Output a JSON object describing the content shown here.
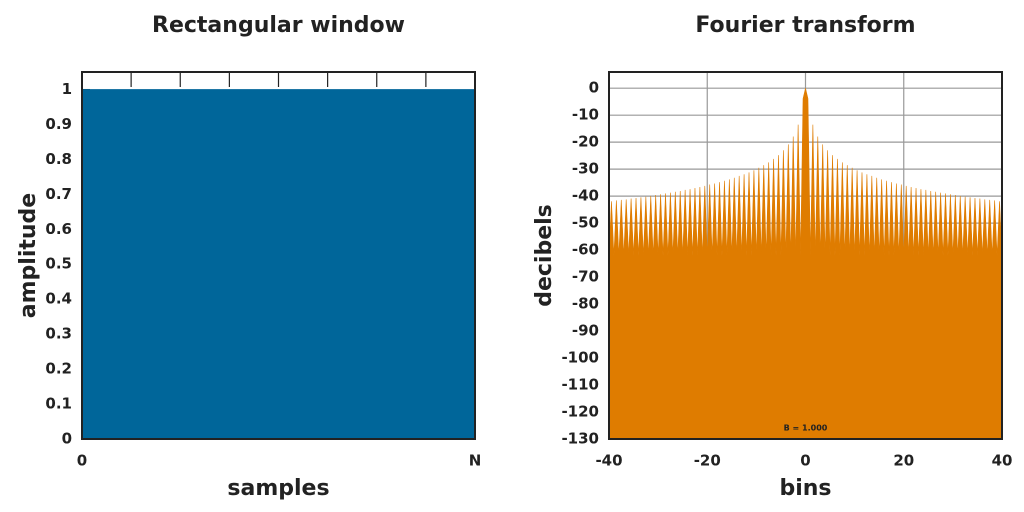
{
  "chart_data": [
    {
      "type": "area",
      "title": "Rectangular window",
      "x_label": "samples",
      "y_label": "amplitude",
      "x": [
        0,
        8
      ],
      "values": [
        1,
        1
      ],
      "color": "#00669a",
      "xlim": [
        0,
        8
      ],
      "ylim": [
        0,
        1.05
      ],
      "xticks": [
        0,
        {
          "value": 8,
          "label": "N"
        }
      ],
      "minor_xticks": [
        1,
        2,
        3,
        4,
        5,
        6,
        7
      ],
      "yticks": [
        0,
        0.1,
        0.2,
        0.3,
        0.4,
        0.5,
        0.6,
        0.7,
        0.8,
        0.9,
        1
      ],
      "grid": false
    },
    {
      "type": "area",
      "title": "Fourier transform",
      "x_label": "bins",
      "y_label": "decibels",
      "annotation": "B = 1.000",
      "x": [
        -40,
        -39.5,
        -39,
        -38.5,
        -38,
        -37.5,
        -37,
        -36.5,
        -36,
        -35.5,
        -35,
        -34.5,
        -34,
        -33.5,
        -33,
        -32.5,
        -32,
        -31.5,
        -31,
        -30.5,
        -30,
        -29.5,
        -29,
        -28.5,
        -28,
        -27.5,
        -27,
        -26.5,
        -26,
        -25.5,
        -25,
        -24.5,
        -24,
        -23.5,
        -23,
        -22.5,
        -22,
        -21.5,
        -21,
        -20.5,
        -20,
        -19.5,
        -19,
        -18.5,
        -18,
        -17.5,
        -17,
        -16.5,
        -16,
        -15.5,
        -15,
        -14.5,
        -14,
        -13.5,
        -13,
        -12.5,
        -12,
        -11.5,
        -11,
        -10.5,
        -10,
        -9.5,
        -9,
        -8.5,
        -8,
        -7.5,
        -7,
        -6.5,
        -6,
        -5.5,
        -5,
        -4.5,
        -4,
        -3.5,
        -3,
        -2.5,
        -2,
        -1.5,
        -1,
        -0.5,
        0,
        0.5,
        1,
        1.5,
        2,
        2.5,
        3,
        3.5,
        4,
        4.5,
        5,
        5.5,
        6,
        6.5,
        7,
        7.5,
        8,
        8.5,
        9,
        9.5,
        10,
        10.5,
        11,
        11.5,
        12,
        12.5,
        13,
        13.5,
        14,
        14.5,
        15,
        15.5,
        16,
        16.5,
        17,
        17.5,
        18,
        18.5,
        19,
        19.5,
        20,
        20.5,
        21,
        21.5,
        22,
        22.5,
        23,
        23.5,
        24,
        24.5,
        25,
        25.5,
        26,
        26.5,
        27,
        27.5,
        28,
        28.5,
        29,
        29.5,
        30,
        30.5,
        31,
        31.5,
        32,
        32.5,
        33,
        33.5,
        34,
        34.5,
        35,
        35.5,
        36,
        36.5,
        37,
        37.5,
        38,
        38.5,
        39,
        39.5,
        40
      ],
      "values": [
        -62,
        -41.9,
        -62,
        -41.6,
        -62,
        -41.4,
        -62,
        -41.2,
        -62,
        -40.9,
        -62,
        -40.7,
        -62,
        -40.4,
        -62,
        -40.2,
        -62,
        -39.9,
        -62,
        -39.6,
        -62,
        -39.3,
        -62,
        -39.0,
        -62,
        -38.7,
        -62,
        -38.4,
        -62,
        -38.1,
        -62,
        -37.7,
        -62,
        -37.4,
        -62,
        -37.0,
        -62,
        -36.6,
        -62,
        -36.2,
        -62,
        -35.7,
        -62,
        -35.3,
        -62,
        -34.8,
        -62,
        -34.3,
        -62,
        -33.8,
        -62,
        -33.2,
        -62,
        -32.5,
        -62,
        -31.9,
        -62,
        -31.2,
        -62,
        -30.4,
        -62,
        -29.5,
        -62,
        -28.5,
        -62,
        -27.5,
        -62,
        -26.2,
        -62,
        -24.8,
        -62,
        -23.0,
        -62,
        -20.8,
        -62,
        -17.9,
        -62,
        -13.5,
        -62,
        -3.9,
        0,
        -3.9,
        -62,
        -13.5,
        -62,
        -17.9,
        -62,
        -20.8,
        -62,
        -23.0,
        -62,
        -24.8,
        -62,
        -26.2,
        -62,
        -27.5,
        -62,
        -28.5,
        -62,
        -29.5,
        -62,
        -30.4,
        -62,
        -31.2,
        -62,
        -31.9,
        -62,
        -32.5,
        -62,
        -33.2,
        -62,
        -33.8,
        -62,
        -34.3,
        -62,
        -34.8,
        -62,
        -35.3,
        -62,
        -35.7,
        -62,
        -36.2,
        -62,
        -36.6,
        -62,
        -37.0,
        -62,
        -37.4,
        -62,
        -37.7,
        -62,
        -38.1,
        -62,
        -38.4,
        -62,
        -38.7,
        -62,
        -39.0,
        -62,
        -39.3,
        -62,
        -39.6,
        -62,
        -39.9,
        -62,
        -40.2,
        -62,
        -40.4,
        -62,
        -40.7,
        -62,
        -40.9,
        -62,
        -41.2,
        -62,
        -41.4,
        -62,
        -41.6,
        -62,
        -41.9,
        -62
      ],
      "color": "#df7c00",
      "xlim": [
        -40,
        40
      ],
      "ylim": [
        -130,
        6
      ],
      "xticks": [
        -40,
        -20,
        0,
        20,
        40
      ],
      "yticks": [
        -130,
        -120,
        -110,
        -100,
        -90,
        -80,
        -70,
        -60,
        -50,
        -40,
        -30,
        -20,
        -10,
        0
      ],
      "grid": true
    }
  ]
}
